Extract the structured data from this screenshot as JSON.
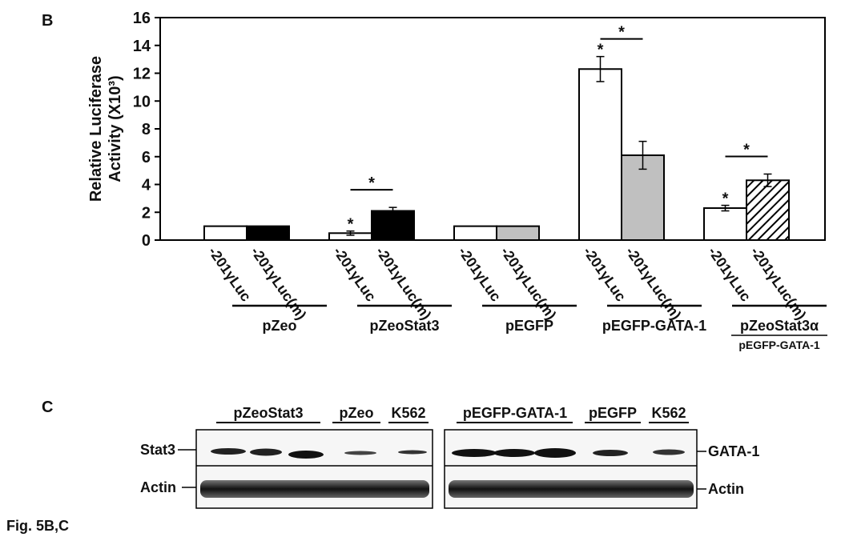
{
  "panel_b": {
    "label": "B"
  },
  "chart_data": {
    "type": "bar",
    "y_label": [
      "Relative Luciferase",
      "Activity (X10³)"
    ],
    "ylim": [
      0,
      16
    ],
    "yticks": [
      0,
      2,
      4,
      6,
      8,
      10,
      12,
      14,
      16
    ],
    "groups": [
      {
        "label": "pZeo"
      },
      {
        "label": "pZeoStat3"
      },
      {
        "label": "pEGFP"
      },
      {
        "label": "pEGFP-GATA-1"
      },
      {
        "label": "pZeoStat3α",
        "sublabel": "pEGFP-GATA-1"
      }
    ],
    "series": [
      {
        "name": "-201γLuc",
        "colors": [
          "#ffffff",
          "#ffffff",
          "#ffffff",
          "#ffffff",
          "#ffffff"
        ],
        "hatched": [
          false,
          false,
          false,
          false,
          false
        ],
        "values": [
          1,
          0.5,
          1,
          12.3,
          2.3
        ],
        "errors": [
          null,
          0.15,
          null,
          0.9,
          0.2
        ],
        "stars": [
          null,
          "*",
          null,
          "*",
          "*"
        ]
      },
      {
        "name": "-201γLuc(m)",
        "colors": [
          "#000000",
          "#000000",
          "#c0c0c0",
          "#c0c0c0",
          "#ffffff"
        ],
        "hatched": [
          false,
          false,
          false,
          false,
          true
        ],
        "values": [
          1,
          2.1,
          1,
          6.1,
          4.3
        ],
        "errors": [
          null,
          0.25,
          null,
          1.0,
          0.45
        ]
      }
    ],
    "bracket_stars": [
      null,
      "*",
      null,
      "*",
      "*"
    ]
  },
  "panel_c": {
    "label": "C",
    "left_headers": [
      "pZeoStat3",
      "pZeo",
      "K562"
    ],
    "right_headers": [
      "pEGFP-GATA-1",
      "pEGFP",
      "K562"
    ],
    "left_rows": [
      "Stat3",
      "Actin"
    ],
    "right_rows": [
      "GATA-1",
      "Actin"
    ]
  },
  "caption": "Fig. 5B,C"
}
